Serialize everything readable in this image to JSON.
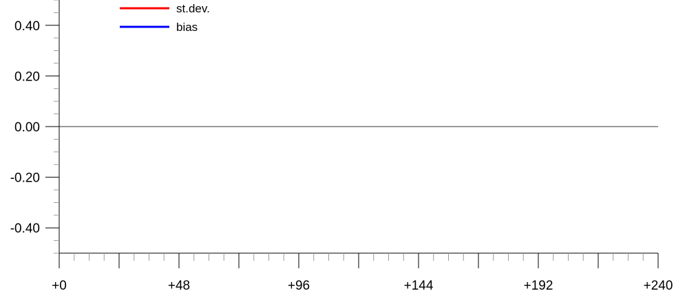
{
  "chart_data": {
    "type": "line",
    "title": "",
    "xlabel": "",
    "ylabel": "",
    "xlim": [
      0,
      240
    ],
    "ylim": [
      -0.5,
      0.5
    ],
    "x_major_step": 24,
    "x_minor_step": 6,
    "x_tick_values": [
      0,
      48,
      96,
      144,
      192,
      240
    ],
    "x_tick_labels": [
      "+0",
      "+48",
      "+96",
      "+144",
      "+192",
      "+240"
    ],
    "y_minor_step": 0.05,
    "y_tick_values": [
      0.4,
      0.2,
      0.0,
      -0.2,
      -0.4
    ],
    "y_tick_labels": [
      "0.40",
      "0.20",
      "0.00",
      "-0.20",
      "-0.40"
    ],
    "reference_line_y": 0.0,
    "grid": false,
    "legend_placement": "top-left",
    "series": [
      {
        "name": "st.dev.",
        "color": "#ff0000",
        "x": [],
        "y": []
      },
      {
        "name": "bias",
        "color": "#0000ff",
        "x": [],
        "y": []
      }
    ]
  }
}
